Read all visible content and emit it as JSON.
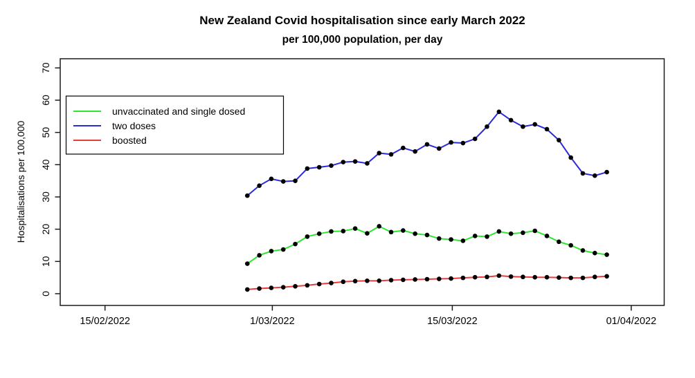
{
  "chart_data": {
    "type": "line",
    "title": "New Zealand Covid hospitalisation since early March 2022",
    "subtitle": "per 100,000 population, per day",
    "xlabel": "",
    "ylabel": "Hospitalisations per 100,000",
    "ylim": [
      0,
      70
    ],
    "y_ticks": [
      0,
      10,
      20,
      30,
      40,
      50,
      60,
      70
    ],
    "x_tick_labels": [
      "15/02/2022",
      "1/03/2022",
      "15/03/2022",
      "01/04/2022"
    ],
    "grid": false,
    "legend_position": "top-left",
    "point_color": "#000000",
    "x": [
      "27/02",
      "28/02",
      "1/03",
      "2/03",
      "3/03",
      "4/03",
      "5/03",
      "6/03",
      "7/03",
      "8/03",
      "9/03",
      "10/03",
      "11/03",
      "12/03",
      "13/03",
      "14/03",
      "15/03",
      "16/03",
      "17/03",
      "18/03",
      "19/03",
      "20/03",
      "21/03",
      "22/03",
      "23/03",
      "24/03",
      "25/03",
      "26/03",
      "27/03",
      "28/03",
      "29/03"
    ],
    "series": [
      {
        "name": "unvaccinated and single dosed",
        "color": "#2ee62e",
        "values": [
          9.3,
          11.9,
          13.2,
          13.7,
          15.4,
          17.7,
          18.6,
          19.3,
          19.4,
          20.2,
          18.7,
          20.9,
          19.1,
          19.6,
          18.6,
          18.2,
          17.1,
          16.8,
          16.4,
          17.9,
          17.7,
          19.3,
          18.6,
          18.9,
          19.5,
          17.9,
          16.1,
          15.0,
          13.4,
          12.6,
          12.1
        ]
      },
      {
        "name": "two doses",
        "color": "#2a2ad8",
        "values": [
          30.4,
          33.5,
          35.6,
          34.8,
          35.0,
          38.8,
          39.2,
          39.7,
          40.8,
          41.0,
          40.4,
          43.6,
          43.2,
          45.2,
          44.1,
          46.3,
          45.0,
          46.9,
          46.7,
          48.0,
          51.8,
          56.4,
          53.8,
          51.8,
          52.5,
          51.0,
          47.6,
          42.2,
          37.3,
          36.6,
          37.7
        ]
      },
      {
        "name": "boosted",
        "color": "#e63c3c",
        "values": [
          1.3,
          1.6,
          1.8,
          2.0,
          2.3,
          2.6,
          3.0,
          3.3,
          3.7,
          3.9,
          4.0,
          4.0,
          4.2,
          4.3,
          4.4,
          4.5,
          4.6,
          4.7,
          4.9,
          5.1,
          5.2,
          5.6,
          5.3,
          5.2,
          5.1,
          5.1,
          5.0,
          4.9,
          4.9,
          5.2,
          5.4
        ]
      }
    ]
  }
}
